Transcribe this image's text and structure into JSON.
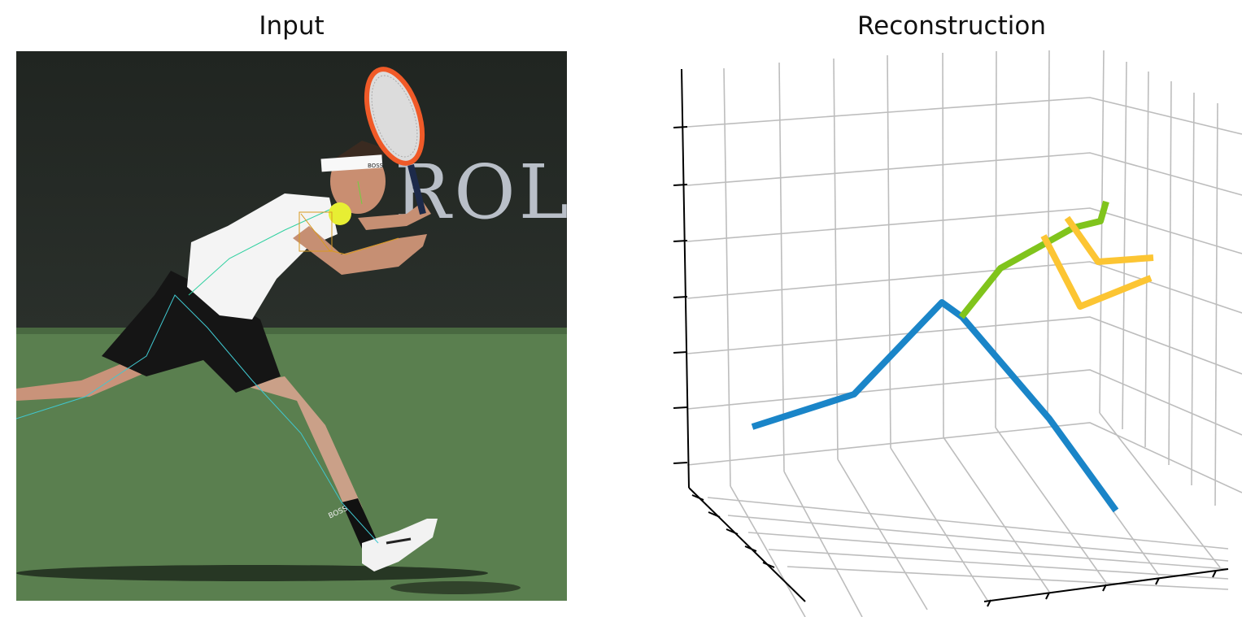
{
  "panels": {
    "input": {
      "title": "Input"
    },
    "reconstruction": {
      "title": "Reconstruction"
    }
  },
  "photo": {
    "background_text": "ROL",
    "headband_text": "BOSS",
    "sock_text": "BOSS"
  },
  "colors": {
    "legs_spine": "#1a85c8",
    "head_neck": "#80c41c",
    "arms": "#fcc533",
    "grid": "#bdbdbd",
    "court": "#577c4d",
    "wall": "#222723"
  }
}
